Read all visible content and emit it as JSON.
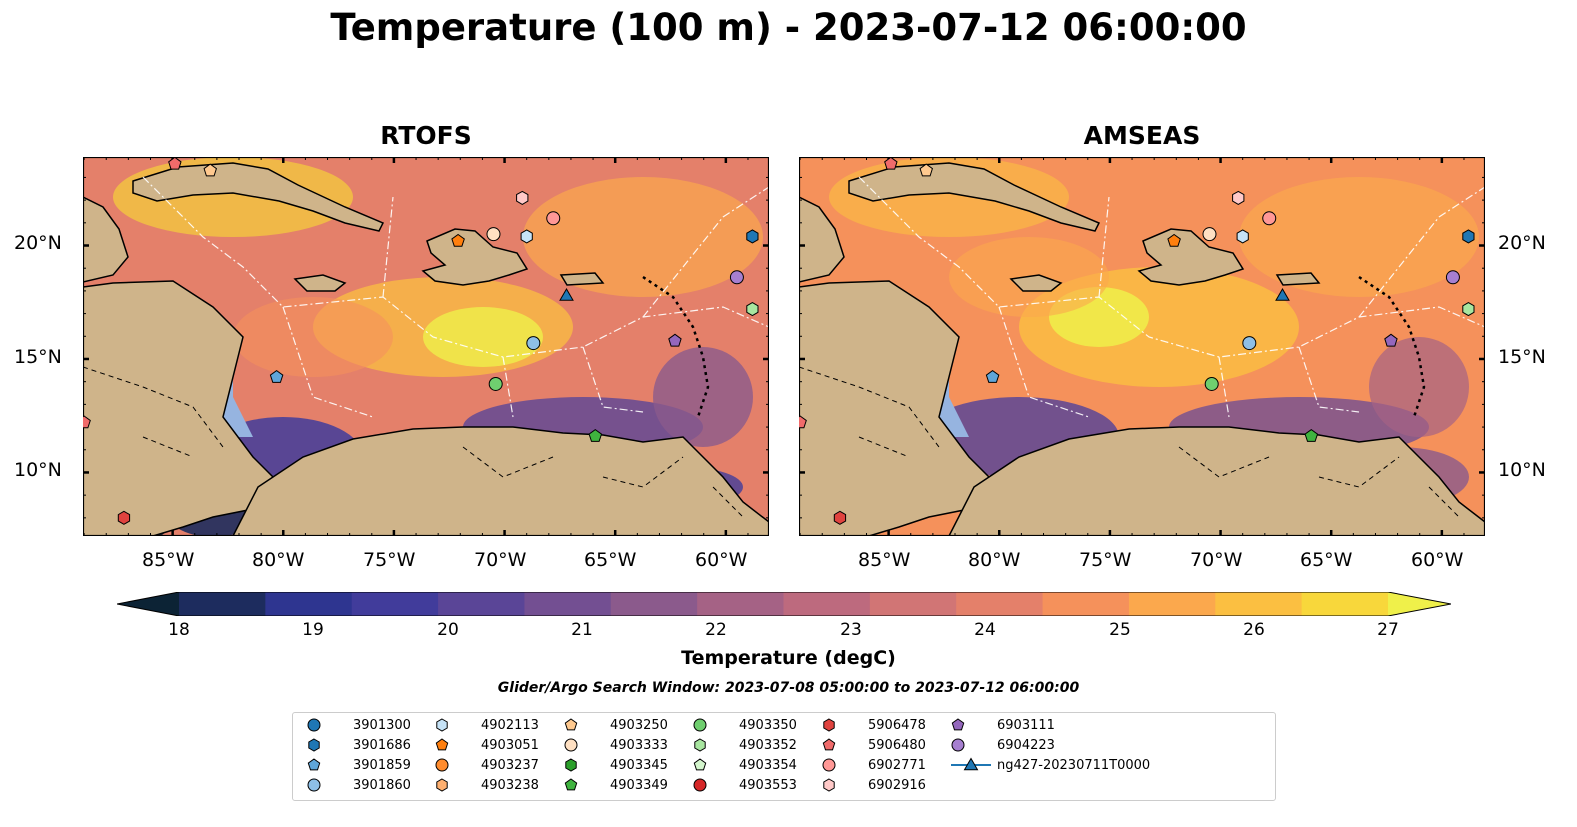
{
  "title": "Temperature (100 m) - 2023-07-12 06:00:00",
  "panels": [
    {
      "name": "RTOFS"
    },
    {
      "name": "AMSEAS"
    }
  ],
  "x_ticks": [
    "85°W",
    "80°W",
    "75°W",
    "70°W",
    "65°W",
    "60°W"
  ],
  "y_ticks": [
    "20°N",
    "15°N",
    "10°N"
  ],
  "colorbar": {
    "label": "Temperature (degC)",
    "ticks": [
      "18",
      "19",
      "20",
      "21",
      "22",
      "23",
      "24",
      "25",
      "26",
      "27"
    ],
    "colors": [
      "#0c2335",
      "#1d2c5e",
      "#2e3590",
      "#413c9b",
      "#5a4597",
      "#734f92",
      "#8b5a8c",
      "#a56285",
      "#bd6a7e",
      "#d17575",
      "#e4806a",
      "#f5915b",
      "#fba84d",
      "#fbbf41",
      "#f8d73b",
      "#eff04a"
    ]
  },
  "search_window": "Glider/Argo Search Window: 2023-07-08 05:00:00 to 2023-07-12 06:00:00",
  "legend": [
    {
      "label": "3901300",
      "marker": "circle",
      "color": "#1f77b4"
    },
    {
      "label": "3901686",
      "marker": "hexagon",
      "color": "#1f77b4"
    },
    {
      "label": "3901859",
      "marker": "pentagon",
      "color": "#5fa6d9"
    },
    {
      "label": "3901860",
      "marker": "circle",
      "color": "#8ebfe6"
    },
    {
      "label": "4902113",
      "marker": "hexagon",
      "color": "#c6e3f7"
    },
    {
      "label": "4903051",
      "marker": "pentagon",
      "color": "#ff7f0e"
    },
    {
      "label": "4903237",
      "marker": "circle",
      "color": "#ff8c2e"
    },
    {
      "label": "4903238",
      "marker": "hexagon",
      "color": "#ffb070"
    },
    {
      "label": "4903250",
      "marker": "pentagon",
      "color": "#ffc98f"
    },
    {
      "label": "4903333",
      "marker": "circle",
      "color": "#ffe0c2"
    },
    {
      "label": "4903345",
      "marker": "hexagon",
      "color": "#2ca02c"
    },
    {
      "label": "4903349",
      "marker": "pentagon",
      "color": "#3fb33f"
    },
    {
      "label": "4903350",
      "marker": "circle",
      "color": "#6fcf6f"
    },
    {
      "label": "4903352",
      "marker": "hexagon",
      "color": "#a8e6a0"
    },
    {
      "label": "4903354",
      "marker": "pentagon",
      "color": "#d3f5cc"
    },
    {
      "label": "4903553",
      "marker": "circle",
      "color": "#d62728"
    },
    {
      "label": "5906478",
      "marker": "hexagon",
      "color": "#e0433f"
    },
    {
      "label": "5906480",
      "marker": "pentagon",
      "color": "#f06b6b"
    },
    {
      "label": "6902771",
      "marker": "circle",
      "color": "#ff9896"
    },
    {
      "label": "6902916",
      "marker": "hexagon",
      "color": "#ffc9c8"
    },
    {
      "label": "6903111",
      "marker": "pentagon",
      "color": "#9467bd"
    },
    {
      "label": "6904223",
      "marker": "circle",
      "color": "#a67fd0"
    },
    {
      "label": "ng427-20230711T0000",
      "marker": "triangle-line",
      "color": "#1f77b4"
    }
  ],
  "map_markers": [
    {
      "label": "6903111",
      "lon": -62.3,
      "lat": 15.8
    },
    {
      "label": "6904223",
      "lon": -59.5,
      "lat": 18.6
    },
    {
      "label": "4903352",
      "lon": -58.8,
      "lat": 17.2
    },
    {
      "label": "3901686",
      "lon": -58.8,
      "lat": 20.4
    },
    {
      "label": "6902771",
      "lon": -67.8,
      "lat": 21.2
    },
    {
      "label": "6902916",
      "lon": -69.2,
      "lat": 22.1
    },
    {
      "label": "3901860",
      "lon": -68.7,
      "lat": 15.7
    },
    {
      "label": "4903350",
      "lon": -70.4,
      "lat": 13.9
    },
    {
      "label": "4903349",
      "lon": -65.9,
      "lat": 11.6
    },
    {
      "label": "4903333",
      "lon": -70.5,
      "lat": 20.5
    },
    {
      "label": "4902113",
      "lon": -69.0,
      "lat": 20.4
    },
    {
      "label": "4903051",
      "lon": -72.1,
      "lat": 20.2
    },
    {
      "label": "4903250",
      "lon": -83.3,
      "lat": 23.3
    },
    {
      "label": "5906480",
      "lon": -84.9,
      "lat": 23.6
    },
    {
      "label": "3901859",
      "lon": -80.3,
      "lat": 14.2
    },
    {
      "label": "5906478",
      "lon": -87.2,
      "lat": 8.0
    },
    {
      "label": "5906480",
      "lon": -89.0,
      "lat": 12.2
    },
    {
      "label": "ng427-20230711T0000",
      "lon": -67.2,
      "lat": 17.8
    }
  ]
}
